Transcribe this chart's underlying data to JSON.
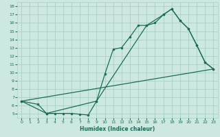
{
  "xlabel": "Humidex (Indice chaleur)",
  "bg_color": "#cce8e0",
  "grid_color": "#aad0c8",
  "line_color": "#1a6b5a",
  "text_color": "#1a6b5a",
  "xlim": [
    -0.5,
    23.5
  ],
  "ylim": [
    4.5,
    18.5
  ],
  "yticks": [
    5,
    6,
    7,
    8,
    9,
    10,
    11,
    12,
    13,
    14,
    15,
    16,
    17,
    18
  ],
  "xticks": [
    0,
    1,
    2,
    3,
    4,
    5,
    6,
    7,
    8,
    9,
    10,
    11,
    12,
    13,
    14,
    15,
    16,
    17,
    18,
    19,
    20,
    21,
    22,
    23
  ],
  "line1": {
    "x": [
      0,
      2,
      3,
      4,
      5,
      6,
      7,
      8,
      9,
      10,
      11,
      12,
      13,
      14,
      15,
      16,
      17,
      18,
      19,
      20,
      21,
      22,
      23
    ],
    "y": [
      6.5,
      6.1,
      5.0,
      5.0,
      5.0,
      5.0,
      4.9,
      4.8,
      6.5,
      9.8,
      12.8,
      13.0,
      14.3,
      15.7,
      15.7,
      16.0,
      17.0,
      17.7,
      16.3,
      15.3,
      13.3,
      11.2,
      10.4
    ]
  },
  "line2": {
    "x": [
      0,
      3,
      9,
      15,
      17,
      18,
      19,
      20,
      21,
      22,
      23
    ],
    "y": [
      6.5,
      5.0,
      6.5,
      15.7,
      17.0,
      17.7,
      16.3,
      15.3,
      13.3,
      11.2,
      10.4
    ]
  },
  "line3": {
    "x": [
      0,
      23
    ],
    "y": [
      6.5,
      10.4
    ]
  }
}
